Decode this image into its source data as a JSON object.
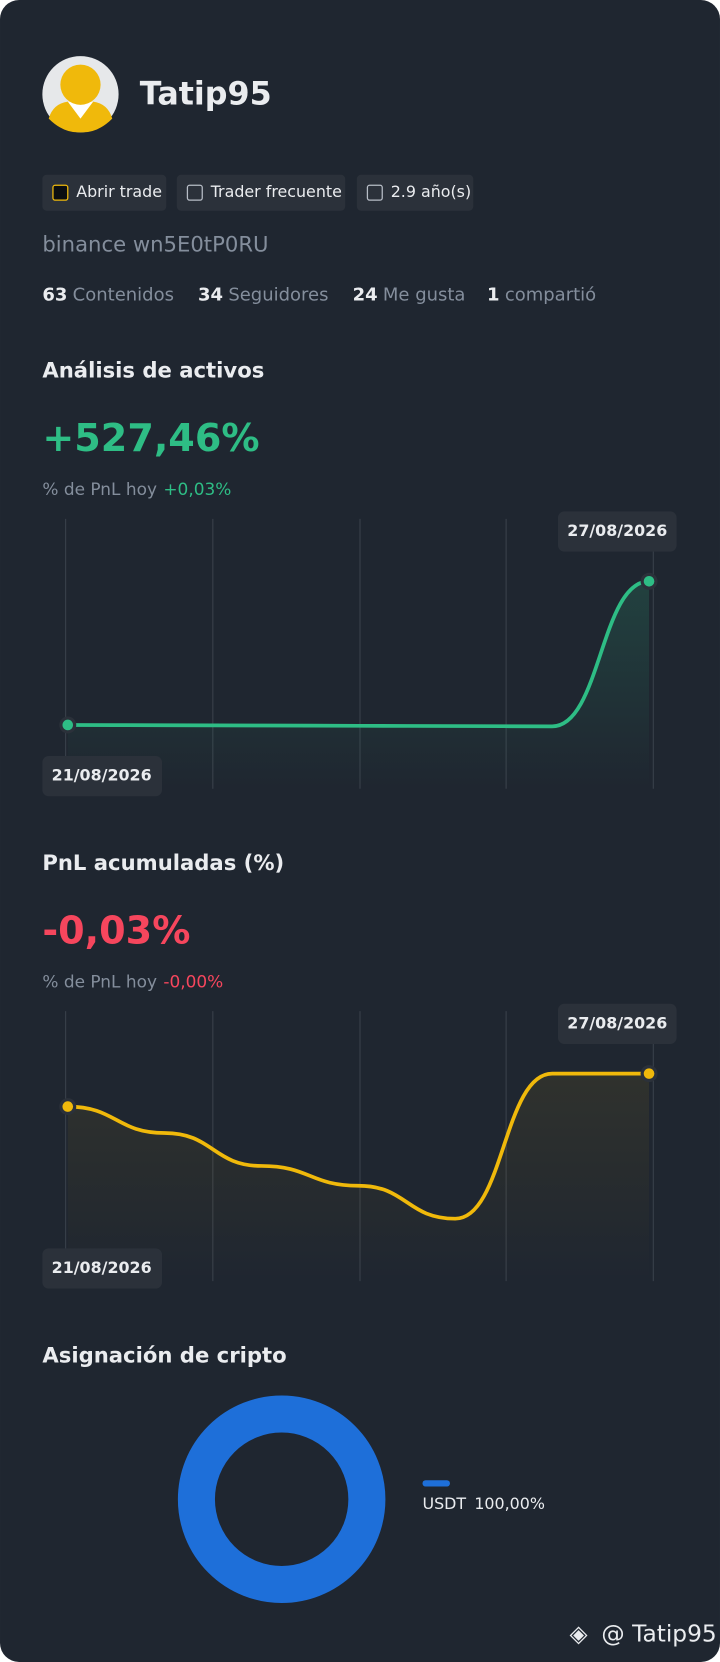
{
  "profile": {
    "name": "Tatip95",
    "tags": [
      "Abrir trade",
      "Trader frecuente",
      "2.9 año(s)"
    ],
    "account": "binance wn5E0tP0RU",
    "stats": [
      {
        "count": 63,
        "label": "Contenidos"
      },
      {
        "count": 34,
        "label": "Seguidores"
      },
      {
        "count": 24,
        "label": "Me gusta"
      },
      {
        "count": 1,
        "label": "compartió"
      }
    ]
  },
  "chart_data": [
    {
      "type": "line",
      "title": "Análisis de activos",
      "headline": "+527,46%",
      "subtitle": "% de PnL hoy",
      "today": "+0,03%",
      "color": "#2ebd85",
      "categories": [
        "21/08/2026",
        null,
        null,
        null,
        null,
        null,
        "27/08/2026"
      ],
      "values": [
        0,
        -1,
        -2,
        -3,
        -4,
        -5,
        527.46
      ]
    },
    {
      "type": "line",
      "title": "PnL acumuladas (%)",
      "headline": "-0,03%",
      "subtitle": "% de PnL hoy",
      "today": "-0,00%",
      "headline_color": "#f6465d",
      "color": "#f0b90b",
      "categories": [
        "21/08/2026",
        null,
        null,
        null,
        null,
        null,
        "27/08/2026"
      ],
      "values": [
        -0.08,
        -0.12,
        -0.17,
        -0.2,
        -0.25,
        -0.03,
        -0.03
      ]
    },
    {
      "type": "pie",
      "title": "Asignación de cripto",
      "categories": [
        "USDT"
      ],
      "values": [
        100
      ],
      "value_labels": [
        "100,00%"
      ],
      "colors": [
        "#1e6fd9"
      ]
    }
  ],
  "footer": "@ Tatip95"
}
